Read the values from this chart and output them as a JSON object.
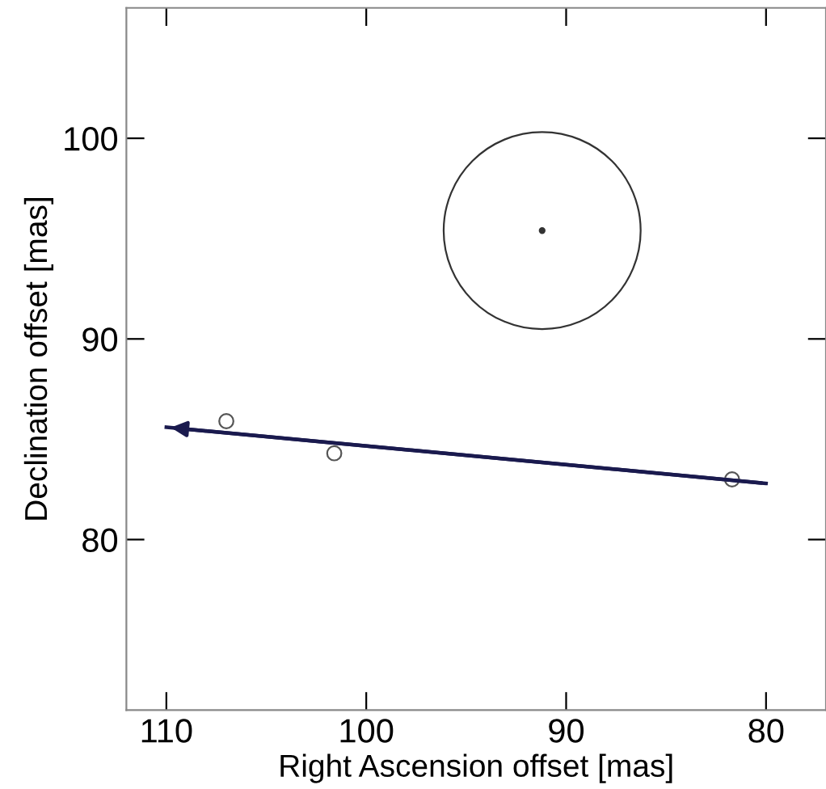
{
  "chart_data": {
    "type": "scatter",
    "xlabel": "Right Ascension offset [mas]",
    "ylabel": "Declination offset [mas]",
    "xlim": [
      112,
      77
    ],
    "ylim": [
      71.5,
      106.5
    ],
    "xticks": [
      110,
      100,
      90,
      80
    ],
    "yticks": [
      80,
      90,
      100
    ],
    "grid": false,
    "legend": false,
    "series": [
      {
        "color": "#555555",
        "marker": "circle",
        "x": [
          107.0,
          101.6,
          81.7
        ],
        "values": [
          85.9,
          84.3,
          83.0
        ]
      },
      {
        "type": "bubble",
        "color": "#333333",
        "x": [
          91.2
        ],
        "values": [
          95.4
        ],
        "sizes": [
          1
        ]
      },
      {
        "type": "line",
        "color": "#1a1a4e",
        "line_style": "solid",
        "marker": "none",
        "x": [
          80,
          110
        ],
        "values": [
          82.8,
          85.6
        ]
      }
    ]
  }
}
